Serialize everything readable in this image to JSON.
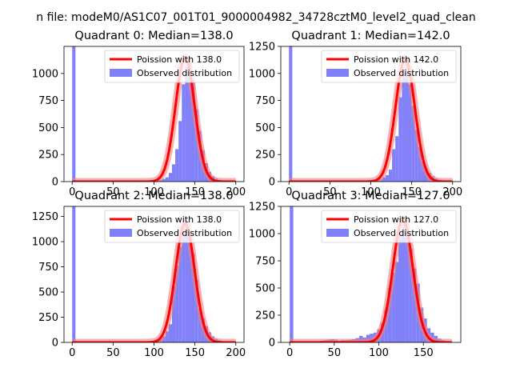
{
  "figure": {
    "suptitle": "n file: modeM0/AS1C07_001T01_9000004982_34728cztM0_level2_quad_clean"
  },
  "colors": {
    "hist": "#8080f8",
    "curve": "#ff0000",
    "curve_highlight": "#f08080",
    "spike": "#8080f8"
  },
  "chart_data": [
    {
      "type": "bar",
      "title": "Quadrant 0: Median=138.0",
      "legend": [
        "Poission with 138.0",
        "Observed distribution"
      ],
      "legend_position": "top-right",
      "xlim": [
        -10,
        210
      ],
      "ylim": [
        0,
        1250
      ],
      "xticks": [
        0,
        50,
        100,
        150,
        200
      ],
      "yticks": [
        0,
        250,
        500,
        750,
        1000
      ],
      "spike": {
        "x": 0,
        "value": 1250
      },
      "bin_width": 4,
      "bins_x": [
        102,
        106,
        110,
        114,
        118,
        122,
        126,
        130,
        134,
        138,
        142,
        146,
        150,
        154,
        158,
        162,
        166,
        170,
        174,
        178,
        182,
        186,
        190,
        194,
        198
      ],
      "values": [
        10,
        15,
        25,
        40,
        80,
        160,
        300,
        560,
        900,
        1060,
        1090,
        950,
        670,
        470,
        290,
        170,
        90,
        50,
        28,
        16,
        9,
        6,
        4,
        3,
        2
      ],
      "curve": {
        "mu": 138,
        "sigma": 11.75,
        "peak": 1150,
        "x_range": [
          0,
          200
        ]
      }
    },
    {
      "type": "bar",
      "title": "Quadrant 1: Median=142.0",
      "legend": [
        "Poission with 142.0",
        "Observed distribution"
      ],
      "legend_position": "top-right",
      "xlim": [
        -10,
        210
      ],
      "ylim": [
        0,
        1250
      ],
      "xticks": [
        0,
        50,
        100,
        150,
        200
      ],
      "yticks": [
        0,
        250,
        500,
        750,
        1000,
        1250
      ],
      "spike": {
        "x": 0,
        "value": 1250
      },
      "bin_width": 4,
      "bins_x": [
        106,
        110,
        114,
        118,
        122,
        126,
        130,
        134,
        138,
        142,
        146,
        150,
        154,
        158,
        162,
        166,
        170,
        174,
        178,
        182,
        186,
        190,
        194,
        198
      ],
      "values": [
        10,
        20,
        40,
        60,
        110,
        300,
        420,
        780,
        1000,
        1100,
        900,
        700,
        480,
        320,
        190,
        120,
        80,
        50,
        28,
        16,
        9,
        5,
        3,
        2
      ],
      "curve": {
        "mu": 142,
        "sigma": 11.9,
        "peak": 1130,
        "x_range": [
          0,
          200
        ]
      }
    },
    {
      "type": "bar",
      "title": "Quadrant 2: Median=138.0",
      "legend": [
        "Poission with 138.0",
        "Observed distribution"
      ],
      "legend_position": "top-right",
      "xlim": [
        -10,
        210
      ],
      "ylim": [
        0,
        1350
      ],
      "xticks": [
        0,
        50,
        100,
        150,
        200
      ],
      "yticks": [
        0,
        250,
        500,
        750,
        1000,
        1250
      ],
      "spike": {
        "x": 0,
        "value": 1350
      },
      "bin_width": 4,
      "bins_x": [
        98,
        102,
        106,
        110,
        114,
        118,
        122,
        126,
        130,
        134,
        138,
        142,
        146,
        150,
        154,
        158,
        162,
        166,
        170,
        174,
        178,
        182,
        186,
        190,
        194,
        198
      ],
      "values": [
        8,
        20,
        35,
        60,
        110,
        180,
        560,
        760,
        950,
        1150,
        1200,
        1100,
        880,
        620,
        340,
        240,
        160,
        100,
        60,
        35,
        20,
        12,
        7,
        4,
        2,
        1
      ],
      "curve": {
        "mu": 138,
        "sigma": 11.75,
        "peak": 1180,
        "x_range": [
          0,
          200
        ]
      }
    },
    {
      "type": "bar",
      "title": "Quadrant 3: Median=127.0",
      "legend": [
        "Poission with 127.0",
        "Observed distribution"
      ],
      "legend_position": "top-right",
      "xlim": [
        -10,
        192
      ],
      "ylim": [
        0,
        1250
      ],
      "xticks": [
        0,
        50,
        100,
        150
      ],
      "yticks": [
        0,
        250,
        500,
        750,
        1000,
        1250
      ],
      "spike": {
        "x": 0,
        "value": 1250
      },
      "bin_width": 4,
      "bins_x": [
        22,
        26,
        30,
        34,
        38,
        42,
        46,
        50,
        54,
        58,
        62,
        66,
        70,
        74,
        78,
        82,
        86,
        90,
        94,
        98,
        102,
        106,
        110,
        114,
        118,
        122,
        126,
        130,
        134,
        138,
        142,
        146,
        150,
        154,
        158,
        162,
        166,
        170,
        174,
        178
      ],
      "values": [
        5,
        10,
        8,
        15,
        20,
        25,
        30,
        25,
        15,
        20,
        20,
        25,
        30,
        40,
        60,
        45,
        70,
        80,
        90,
        120,
        180,
        300,
        500,
        640,
        740,
        1000,
        1100,
        1000,
        860,
        680,
        540,
        320,
        220,
        130,
        90,
        60,
        35,
        20,
        12,
        6
      ],
      "curve": {
        "mu": 127,
        "sigma": 11.27,
        "peak": 1130,
        "x_range": [
          0,
          182
        ]
      }
    }
  ]
}
